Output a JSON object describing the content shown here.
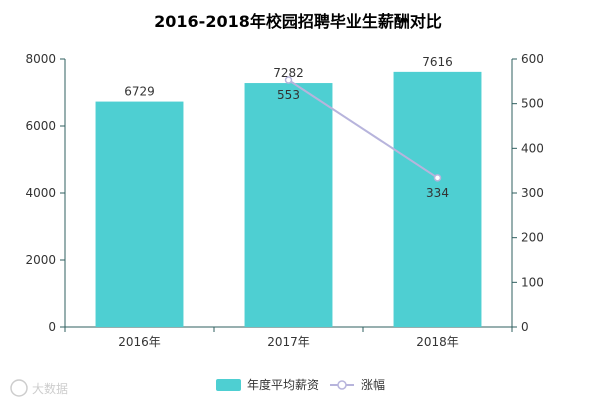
{
  "chart_data": {
    "title": "2016-2018年校园招聘毕业生薪酬对比",
    "categories": [
      "2016年",
      "2017年",
      "2018年"
    ],
    "series": [
      {
        "name": "年度平均薪资",
        "type": "bar",
        "axis": "left",
        "values": [
          6729,
          7282,
          7616
        ]
      },
      {
        "name": "涨幅",
        "type": "line",
        "axis": "right",
        "values": [
          null,
          553,
          334
        ]
      }
    ],
    "y_left": {
      "min": 0,
      "max": 8000,
      "ticks": [
        0,
        2000,
        4000,
        6000,
        8000
      ]
    },
    "y_right": {
      "min": 0,
      "max": 600,
      "ticks": [
        0,
        100,
        200,
        300,
        400,
        500,
        600
      ]
    },
    "legend_position": "bottom-center",
    "grid": false
  },
  "colors": {
    "title": "#1f8dbd",
    "bar": "#4ecfd2",
    "line": "#b7b4dc",
    "axis": "#2f5f5f",
    "text": "#333333"
  },
  "watermark": "大数据"
}
